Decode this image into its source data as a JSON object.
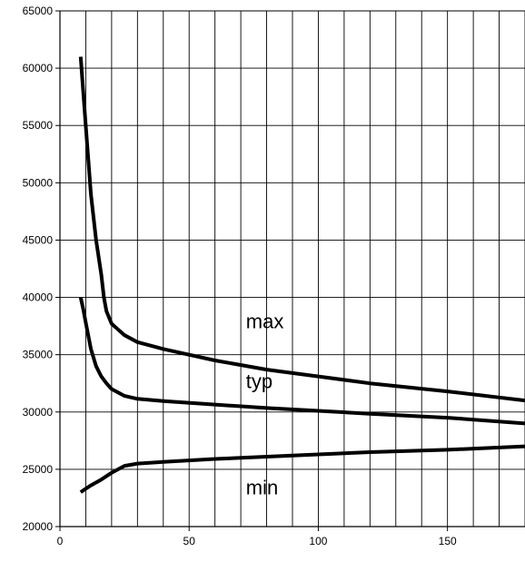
{
  "chart_data": {
    "type": "line",
    "title": "",
    "xlabel": "",
    "ylabel": "",
    "xlim": [
      0,
      180
    ],
    "ylim": [
      20000,
      65000
    ],
    "x_ticks": [
      0,
      50,
      100,
      150
    ],
    "y_ticks": [
      20000,
      25000,
      30000,
      35000,
      40000,
      45000,
      50000,
      55000,
      60000,
      65000
    ],
    "x_grid_step": 10,
    "grid": true,
    "legend": "none",
    "series": [
      {
        "name": "max",
        "color": "#000000",
        "points": [
          [
            8,
            61000
          ],
          [
            9,
            58000
          ],
          [
            10,
            55000
          ],
          [
            12,
            49000
          ],
          [
            14,
            45000
          ],
          [
            16,
            42000
          ],
          [
            17,
            40000
          ],
          [
            18,
            38800
          ],
          [
            20,
            37700
          ],
          [
            25,
            36700
          ],
          [
            30,
            36100
          ],
          [
            40,
            35500
          ],
          [
            60,
            34500
          ],
          [
            80,
            33700
          ],
          [
            100,
            33100
          ],
          [
            120,
            32500
          ],
          [
            150,
            31800
          ],
          [
            180,
            31000
          ]
        ]
      },
      {
        "name": "typ",
        "color": "#000000",
        "points": [
          [
            8,
            40000
          ],
          [
            9,
            39000
          ],
          [
            10,
            37800
          ],
          [
            12,
            35500
          ],
          [
            14,
            34000
          ],
          [
            16,
            33100
          ],
          [
            18,
            32500
          ],
          [
            20,
            32000
          ],
          [
            25,
            31400
          ],
          [
            30,
            31150
          ],
          [
            40,
            30950
          ],
          [
            60,
            30650
          ],
          [
            80,
            30350
          ],
          [
            100,
            30100
          ],
          [
            120,
            29850
          ],
          [
            150,
            29500
          ],
          [
            180,
            29000
          ]
        ]
      },
      {
        "name": "min",
        "color": "#000000",
        "points": [
          [
            8,
            23000
          ],
          [
            10,
            23300
          ],
          [
            12,
            23600
          ],
          [
            16,
            24100
          ],
          [
            20,
            24700
          ],
          [
            25,
            25300
          ],
          [
            30,
            25500
          ],
          [
            40,
            25650
          ],
          [
            60,
            25900
          ],
          [
            80,
            26100
          ],
          [
            100,
            26300
          ],
          [
            120,
            26500
          ],
          [
            150,
            26700
          ],
          [
            180,
            27000
          ]
        ]
      }
    ],
    "annotations": [
      {
        "text": "max",
        "x": 72,
        "y": 37300
      },
      {
        "text": "typ",
        "x": 72,
        "y": 32100
      },
      {
        "text": "min",
        "x": 72,
        "y": 22800
      }
    ]
  }
}
